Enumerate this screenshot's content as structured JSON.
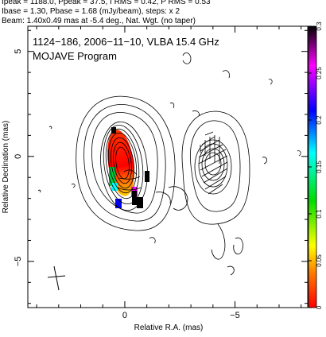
{
  "header": {
    "line1": "Ipeak = 1188.0, Ppeak = 37.5, I RMS = 0.42, P RMS = 0.53",
    "line2": "Ibase = 1.30, Pbase = 1.68 (mJy/beam), steps: x 2",
    "line3": "Beam: 1.40x0.49 mas at -5.4 deg., Nat. Wgt. (no taper)"
  },
  "map": {
    "label_line1": "1124−186, 2006−11−10, VLBA 15.4 GHz",
    "label_line2": "MOJAVE Program",
    "xlabel": "Relative R.A. (mas)",
    "ylabel": "Relative Declination (mas)",
    "x_ticks": [
      {
        "value": 0,
        "label": "0"
      },
      {
        "value": -5,
        "label": "−5"
      }
    ],
    "y_ticks": [
      {
        "value": 5,
        "label": "5"
      },
      {
        "value": 0,
        "label": "0"
      },
      {
        "value": -5,
        "label": "−5"
      }
    ],
    "xlim": [
      4.4,
      -8.3
    ],
    "ylim": [
      -7.2,
      6.2
    ]
  },
  "colorbar": {
    "ticks": [
      {
        "value": 0,
        "label": "0"
      },
      {
        "value": 0.05,
        "label": "0.05"
      },
      {
        "value": 0.1,
        "label": "0.1"
      },
      {
        "value": 0.15,
        "label": "0.15"
      },
      {
        "value": 0.2,
        "label": "0.2"
      },
      {
        "value": 0.25,
        "label": "0.25"
      },
      {
        "value": 0.3,
        "label": "0.3"
      }
    ],
    "range": [
      0,
      0.3
    ],
    "colors": [
      "#ff0000",
      "#ff8800",
      "#ffff00",
      "#00dd00",
      "#00ffff",
      "#0000ff",
      "#ff00ff",
      "#000000"
    ]
  }
}
